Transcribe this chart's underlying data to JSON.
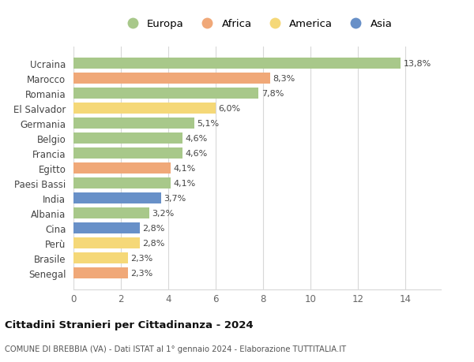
{
  "categories": [
    "Ucraina",
    "Marocco",
    "Romania",
    "El Salvador",
    "Germania",
    "Belgio",
    "Francia",
    "Egitto",
    "Paesi Bassi",
    "India",
    "Albania",
    "Cina",
    "Perù",
    "Brasile",
    "Senegal"
  ],
  "values": [
    13.8,
    8.3,
    7.8,
    6.0,
    5.1,
    4.6,
    4.6,
    4.1,
    4.1,
    3.7,
    3.2,
    2.8,
    2.8,
    2.3,
    2.3
  ],
  "labels": [
    "13,8%",
    "8,3%",
    "7,8%",
    "6,0%",
    "5,1%",
    "4,6%",
    "4,6%",
    "4,1%",
    "4,1%",
    "3,7%",
    "3,2%",
    "2,8%",
    "2,8%",
    "2,3%",
    "2,3%"
  ],
  "continents": [
    "Europa",
    "Africa",
    "Europa",
    "America",
    "Europa",
    "Europa",
    "Europa",
    "Africa",
    "Europa",
    "Asia",
    "Europa",
    "Asia",
    "America",
    "America",
    "Africa"
  ],
  "colors": {
    "Europa": "#a8c88a",
    "Africa": "#f0a878",
    "America": "#f5d878",
    "Asia": "#6890c8"
  },
  "legend_order": [
    "Europa",
    "Africa",
    "America",
    "Asia"
  ],
  "title": "Cittadini Stranieri per Cittadinanza - 2024",
  "subtitle": "COMUNE DI BREBBIA (VA) - Dati ISTAT al 1° gennaio 2024 - Elaborazione TUTTITALIA.IT",
  "xlim": [
    0,
    15.5
  ],
  "xticks": [
    0,
    2,
    4,
    6,
    8,
    10,
    12,
    14
  ],
  "background_color": "#ffffff",
  "grid_color": "#d8d8d8"
}
